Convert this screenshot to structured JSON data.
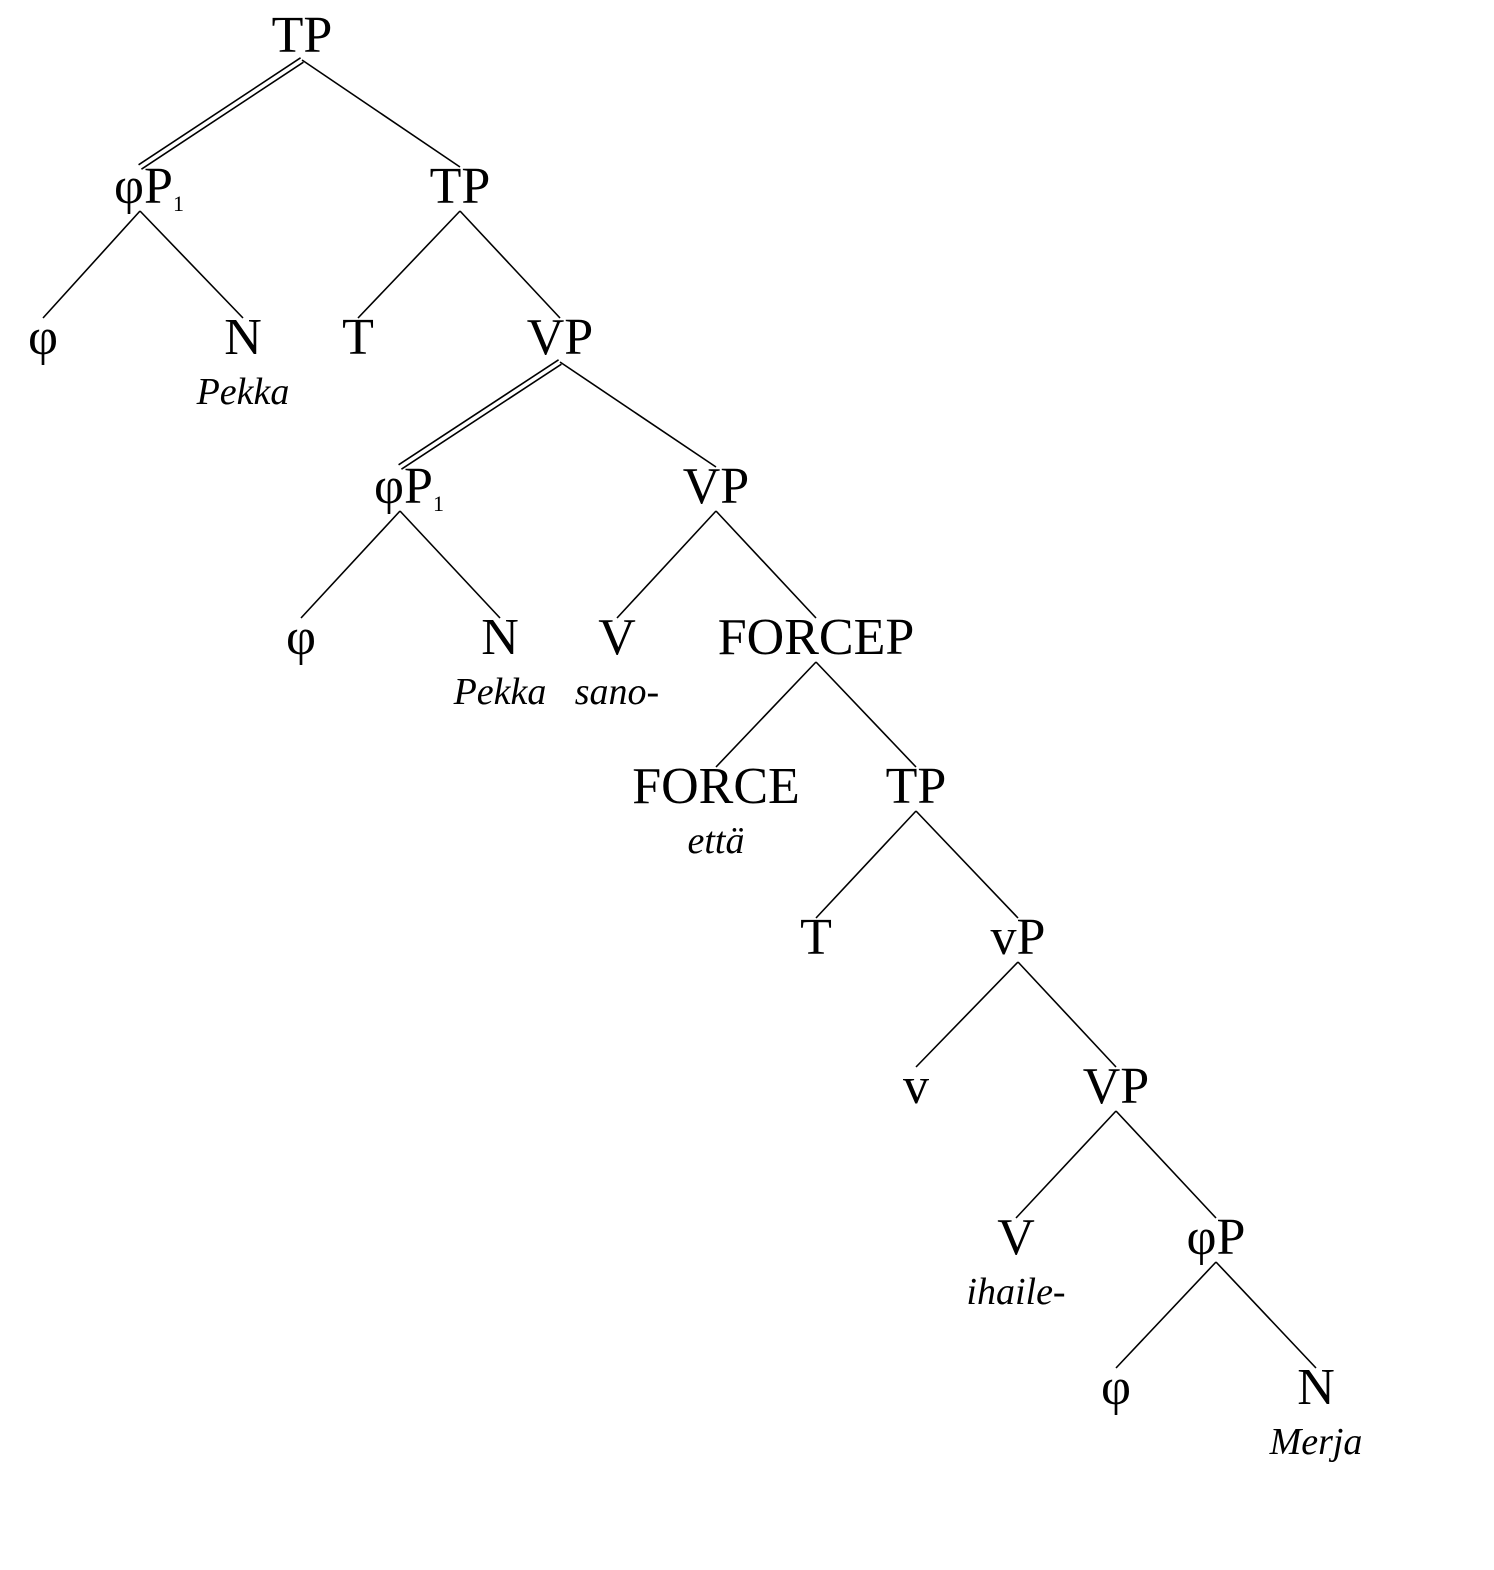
{
  "tree": {
    "nodes": [
      {
        "id": "tp0",
        "label": "TP"
      },
      {
        "id": "phip1",
        "label": "φP",
        "sub": "1"
      },
      {
        "id": "tp1",
        "label": "TP"
      },
      {
        "id": "phi1",
        "label": "φ"
      },
      {
        "id": "n1",
        "label": "N",
        "word": "Pekka"
      },
      {
        "id": "t1",
        "label": "T"
      },
      {
        "id": "vp1",
        "label": "VP"
      },
      {
        "id": "phip2",
        "label": "φP",
        "sub": "1"
      },
      {
        "id": "vp2",
        "label": "VP"
      },
      {
        "id": "phi2",
        "label": "φ"
      },
      {
        "id": "n2",
        "label": "N",
        "word": "Pekka"
      },
      {
        "id": "v1",
        "label": "V",
        "word": "sano-"
      },
      {
        "id": "forcep",
        "label": "FORCEP"
      },
      {
        "id": "force",
        "label": "FORCE",
        "word": "että"
      },
      {
        "id": "tp2",
        "label": "TP"
      },
      {
        "id": "t2",
        "label": "T"
      },
      {
        "id": "littlevp",
        "label": "vP"
      },
      {
        "id": "littlev",
        "label": "v"
      },
      {
        "id": "vp3",
        "label": "VP"
      },
      {
        "id": "v2",
        "label": "V",
        "word": "ihaile-"
      },
      {
        "id": "phip3",
        "label": "φP"
      },
      {
        "id": "phi3",
        "label": "φ"
      },
      {
        "id": "n3",
        "label": "N",
        "word": "Merja"
      }
    ],
    "edges": [
      {
        "from": "tp0",
        "to": "phip1",
        "style": "double"
      },
      {
        "from": "tp0",
        "to": "tp1",
        "style": "single"
      },
      {
        "from": "phip1",
        "to": "phi1",
        "style": "single"
      },
      {
        "from": "phip1",
        "to": "n1",
        "style": "single"
      },
      {
        "from": "tp1",
        "to": "t1",
        "style": "single"
      },
      {
        "from": "tp1",
        "to": "vp1",
        "style": "single"
      },
      {
        "from": "vp1",
        "to": "phip2",
        "style": "double"
      },
      {
        "from": "vp1",
        "to": "vp2",
        "style": "single"
      },
      {
        "from": "phip2",
        "to": "phi2",
        "style": "single"
      },
      {
        "from": "phip2",
        "to": "n2",
        "style": "single"
      },
      {
        "from": "vp2",
        "to": "v1",
        "style": "single"
      },
      {
        "from": "vp2",
        "to": "forcep",
        "style": "single"
      },
      {
        "from": "forcep",
        "to": "force",
        "style": "single"
      },
      {
        "from": "forcep",
        "to": "tp2",
        "style": "single"
      },
      {
        "from": "tp2",
        "to": "t2",
        "style": "single"
      },
      {
        "from": "tp2",
        "to": "littlevp",
        "style": "single"
      },
      {
        "from": "littlevp",
        "to": "littlev",
        "style": "single"
      },
      {
        "from": "littlevp",
        "to": "vp3",
        "style": "single"
      },
      {
        "from": "vp3",
        "to": "v2",
        "style": "single"
      },
      {
        "from": "vp3",
        "to": "phip3",
        "style": "single"
      },
      {
        "from": "phip3",
        "to": "phi3",
        "style": "single"
      },
      {
        "from": "phip3",
        "to": "n3",
        "style": "single"
      }
    ]
  }
}
